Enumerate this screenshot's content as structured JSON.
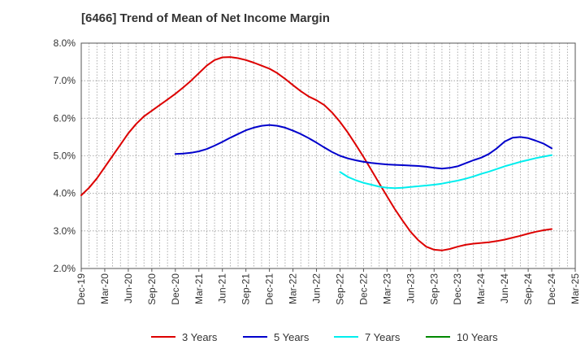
{
  "chart_data": {
    "type": "line",
    "title": "[6466]  Trend of Mean of Net Income Margin",
    "xlabel": "",
    "ylabel": "",
    "ylim": [
      2.0,
      8.0
    ],
    "yticks": [
      "2.0%",
      "3.0%",
      "4.0%",
      "5.0%",
      "6.0%",
      "7.0%",
      "8.0%"
    ],
    "ytick_values": [
      2.0,
      3.0,
      4.0,
      5.0,
      6.0,
      7.0,
      8.0
    ],
    "xticks": [
      "Dec-19",
      "Mar-20",
      "Jun-20",
      "Sep-20",
      "Dec-20",
      "Mar-21",
      "Jun-21",
      "Sep-21",
      "Dec-21",
      "Mar-22",
      "Jun-22",
      "Sep-22",
      "Dec-22",
      "Mar-23",
      "Jun-23",
      "Sep-23",
      "Dec-23",
      "Mar-24",
      "Jun-24",
      "Sep-24",
      "Dec-24",
      "Mar-25"
    ],
    "grid": true,
    "legend_position": "bottom",
    "series": [
      {
        "name": "3 Years",
        "color": "#dd0000",
        "x": [
          "Dec-19",
          "Jan-20",
          "Feb-20",
          "Mar-20",
          "Apr-20",
          "May-20",
          "Jun-20",
          "Jul-20",
          "Aug-20",
          "Sep-20",
          "Oct-20",
          "Nov-20",
          "Dec-20",
          "Jan-21",
          "Feb-21",
          "Mar-21",
          "Apr-21",
          "May-21",
          "Jun-21",
          "Jul-21",
          "Aug-21",
          "Sep-21",
          "Oct-21",
          "Nov-21",
          "Dec-21",
          "Jan-22",
          "Feb-22",
          "Mar-22",
          "Apr-22",
          "May-22",
          "Jun-22",
          "Jul-22",
          "Aug-22",
          "Sep-22",
          "Oct-22",
          "Nov-22",
          "Dec-22",
          "Jan-23",
          "Feb-23",
          "Mar-23",
          "Apr-23",
          "May-23",
          "Jun-23",
          "Jul-23",
          "Aug-23",
          "Sep-23",
          "Oct-23",
          "Nov-23",
          "Dec-23",
          "Jan-24",
          "Feb-24",
          "Mar-24",
          "Apr-24",
          "May-24",
          "Jun-24",
          "Jul-24",
          "Aug-24",
          "Sep-24",
          "Oct-24",
          "Nov-24",
          "Dec-24"
        ],
        "values": [
          3.95,
          4.15,
          4.4,
          4.7,
          5.0,
          5.3,
          5.6,
          5.85,
          6.05,
          6.2,
          6.35,
          6.5,
          6.65,
          6.82,
          7.0,
          7.2,
          7.4,
          7.55,
          7.62,
          7.63,
          7.6,
          7.55,
          7.48,
          7.4,
          7.32,
          7.2,
          7.05,
          6.88,
          6.72,
          6.58,
          6.48,
          6.35,
          6.15,
          5.9,
          5.62,
          5.3,
          4.97,
          4.62,
          4.27,
          3.92,
          3.58,
          3.27,
          2.98,
          2.75,
          2.58,
          2.5,
          2.48,
          2.52,
          2.58,
          2.63,
          2.66,
          2.68,
          2.7,
          2.73,
          2.77,
          2.82,
          2.87,
          2.93,
          2.98,
          3.02,
          3.05
        ]
      },
      {
        "name": "5 Years",
        "color": "#0000cc",
        "x": [
          "Dec-20",
          "Jan-21",
          "Feb-21",
          "Mar-21",
          "Apr-21",
          "May-21",
          "Jun-21",
          "Jul-21",
          "Aug-21",
          "Sep-21",
          "Oct-21",
          "Nov-21",
          "Dec-21",
          "Jan-22",
          "Feb-22",
          "Mar-22",
          "Apr-22",
          "May-22",
          "Jun-22",
          "Jul-22",
          "Aug-22",
          "Sep-22",
          "Oct-22",
          "Nov-22",
          "Dec-22",
          "Jan-23",
          "Feb-23",
          "Mar-23",
          "Apr-23",
          "May-23",
          "Jun-23",
          "Jul-23",
          "Aug-23",
          "Sep-23",
          "Oct-23",
          "Nov-23",
          "Dec-23",
          "Jan-24",
          "Feb-24",
          "Mar-24",
          "Apr-24",
          "May-24",
          "Jun-24",
          "Jul-24",
          "Aug-24",
          "Sep-24",
          "Oct-24",
          "Nov-24",
          "Dec-24"
        ],
        "values": [
          5.05,
          5.06,
          5.08,
          5.12,
          5.18,
          5.27,
          5.37,
          5.48,
          5.58,
          5.68,
          5.75,
          5.8,
          5.82,
          5.8,
          5.75,
          5.67,
          5.58,
          5.47,
          5.35,
          5.22,
          5.1,
          5.0,
          4.93,
          4.88,
          4.84,
          4.81,
          4.79,
          4.77,
          4.76,
          4.75,
          4.74,
          4.73,
          4.71,
          4.68,
          4.66,
          4.68,
          4.72,
          4.8,
          4.88,
          4.95,
          5.05,
          5.2,
          5.38,
          5.48,
          5.5,
          5.47,
          5.4,
          5.32,
          5.2
        ]
      },
      {
        "name": "7 Years",
        "color": "#00eeee",
        "x": [
          "Sep-22",
          "Oct-22",
          "Nov-22",
          "Dec-22",
          "Jan-23",
          "Feb-23",
          "Mar-23",
          "Apr-23",
          "May-23",
          "Jun-23",
          "Jul-23",
          "Aug-23",
          "Sep-23",
          "Oct-23",
          "Nov-23",
          "Dec-23",
          "Jan-24",
          "Feb-24",
          "Mar-24",
          "Apr-24",
          "May-24",
          "Jun-24",
          "Jul-24",
          "Aug-24",
          "Sep-24",
          "Oct-24",
          "Nov-24",
          "Dec-24"
        ],
        "values": [
          4.57,
          4.44,
          4.35,
          4.28,
          4.23,
          4.18,
          4.15,
          4.14,
          4.15,
          4.17,
          4.19,
          4.21,
          4.23,
          4.26,
          4.3,
          4.34,
          4.39,
          4.45,
          4.52,
          4.58,
          4.65,
          4.72,
          4.78,
          4.84,
          4.89,
          4.94,
          4.98,
          5.02
        ]
      },
      {
        "name": "10 Years",
        "color": "#008800",
        "x": [],
        "values": []
      }
    ]
  }
}
